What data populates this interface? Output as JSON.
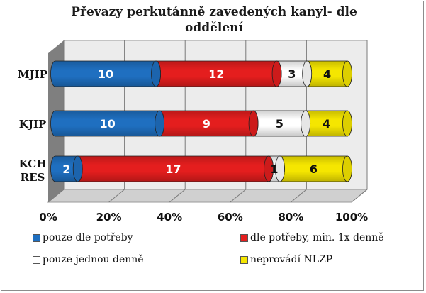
{
  "chart_data": {
    "type": "bar",
    "orientation": "horizontal",
    "stacked": "percent",
    "title": "Převazy perkutánně zavedených kanyl- dle oddělení",
    "categories": [
      "MJIP",
      "KJIP",
      "KCH RES"
    ],
    "series": [
      {
        "name": "pouze dle potřeby",
        "values": [
          10,
          10,
          2
        ],
        "color": "#1f6fc0"
      },
      {
        "name": "dle potřeby, min. 1x denně",
        "values": [
          12,
          9,
          17
        ],
        "color": "#e41e1e"
      },
      {
        "name": "pouze jednou denně",
        "values": [
          3,
          5,
          1
        ],
        "color": "#ffffff"
      },
      {
        "name": "neprovádí NLZP",
        "values": [
          4,
          4,
          6
        ],
        "color": "#f5e600"
      }
    ],
    "x_ticks": [
      "0%",
      "20%",
      "40%",
      "60%",
      "80%",
      "100%"
    ],
    "xlim": [
      0,
      100
    ],
    "grid": true,
    "legend_position": "bottom"
  }
}
